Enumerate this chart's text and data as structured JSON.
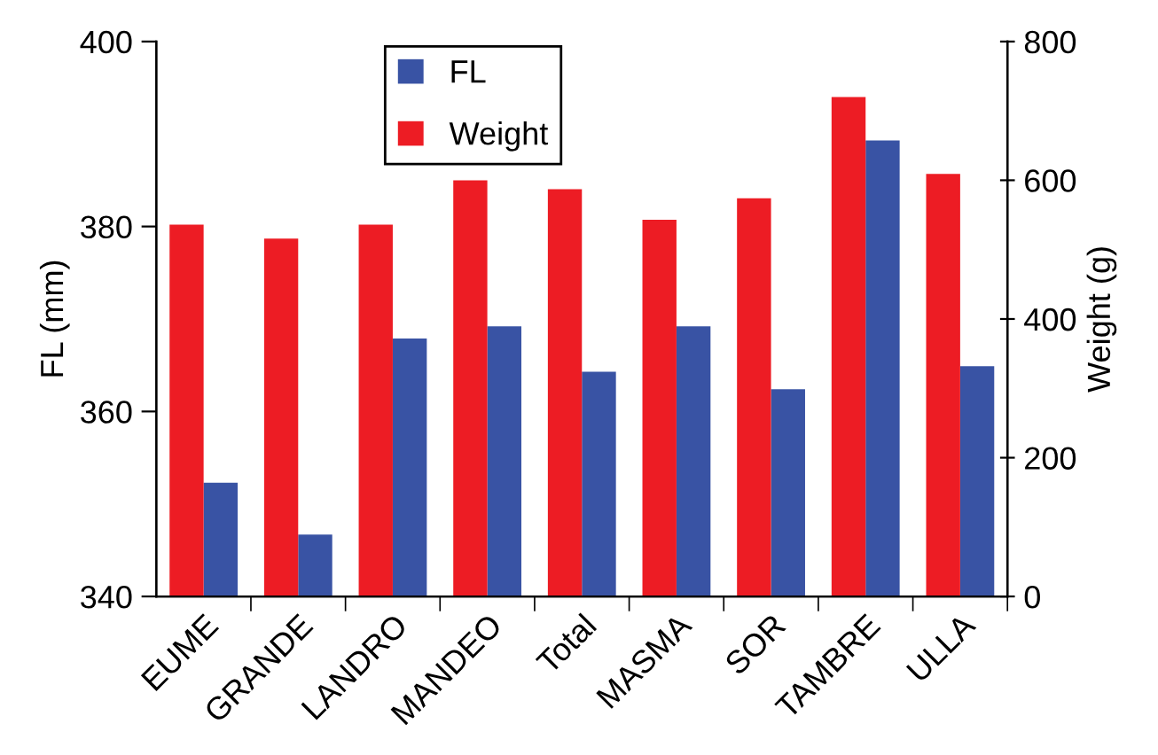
{
  "chart_data": {
    "type": "bar",
    "ylabel": "FL (mm)",
    "y2label": "Weight (g)",
    "categories": [
      "EUME",
      "GRANDE",
      "LANDRO",
      "MANDEO",
      "Total",
      "MASMA",
      "SOR",
      "TAMBRE",
      "ULLA"
    ],
    "series": [
      {
        "name": "Weight",
        "color": "#ed1c24",
        "axis": "y2",
        "values": [
          536,
          516,
          536,
          600,
          587,
          543,
          574,
          720,
          609
        ]
      },
      {
        "name": "FL",
        "color": "#3953a4",
        "values": [
          352.3,
          346.7,
          367.9,
          369.2,
          364.3,
          369.2,
          362.4,
          389.3,
          364.9
        ]
      }
    ],
    "ylim": [
      340,
      400
    ],
    "yticks": [
      340,
      360,
      380,
      400
    ],
    "y2lim": [
      0,
      800
    ],
    "y2ticks": [
      0,
      200,
      400,
      600,
      800
    ],
    "grid": false,
    "legend": "top left"
  }
}
